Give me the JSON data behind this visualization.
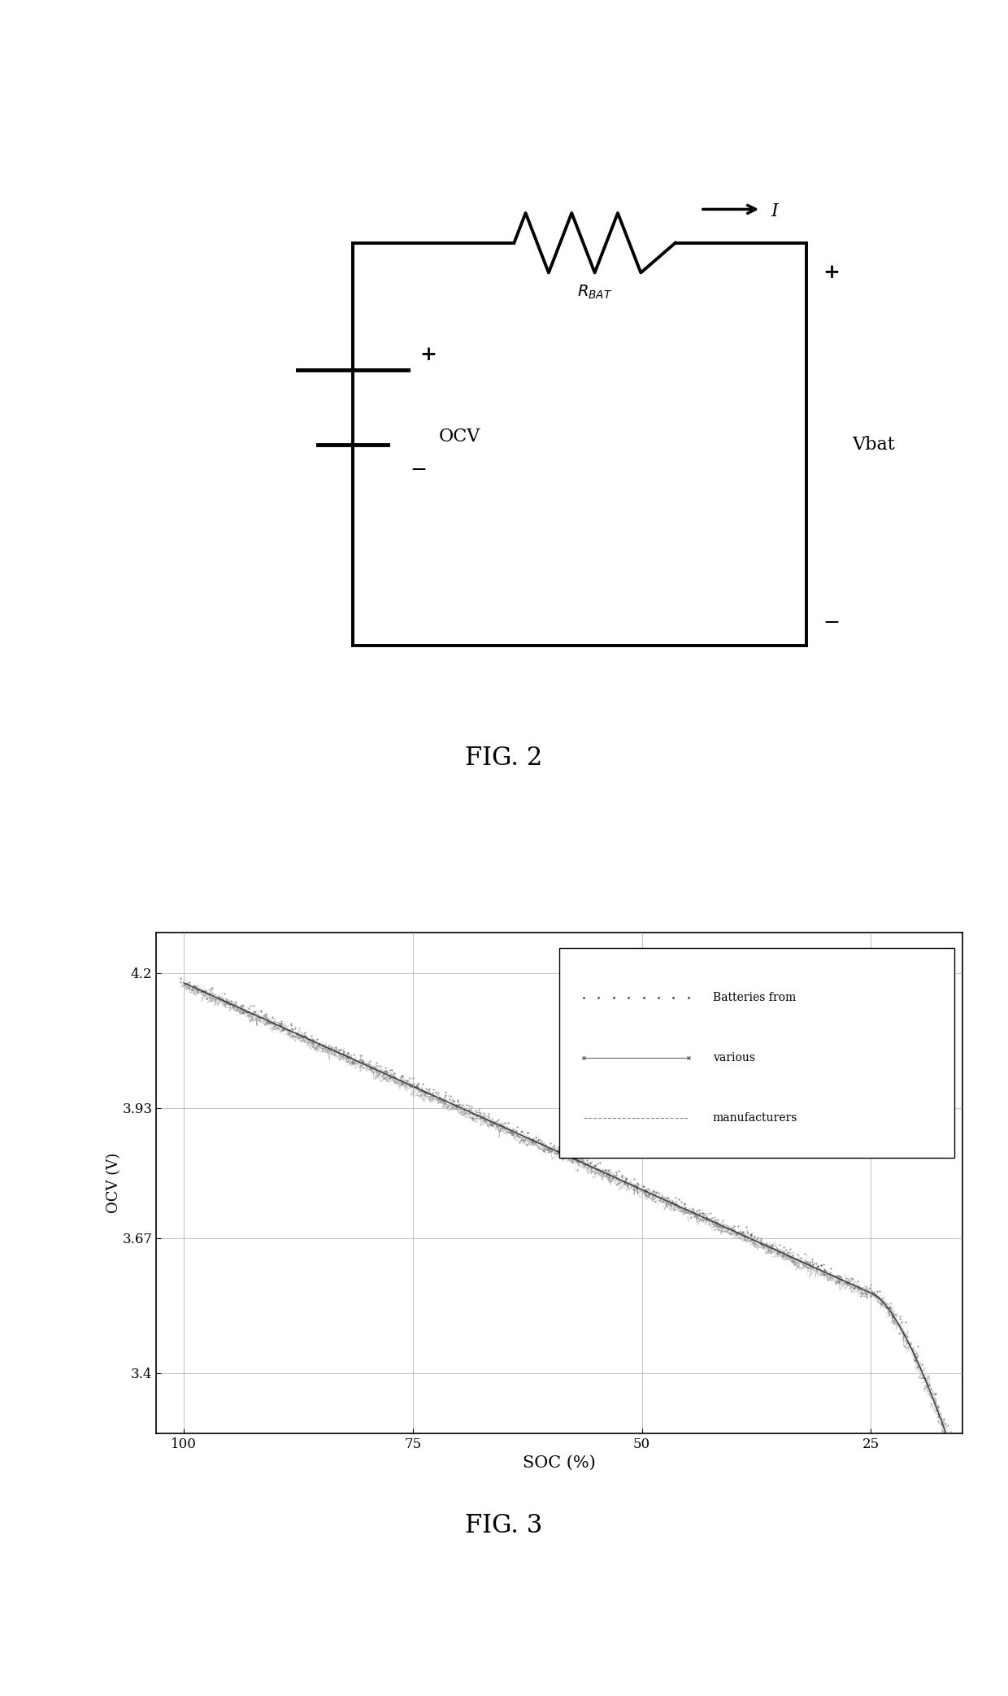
{
  "fig2_label": "FIG. 2",
  "fig3_label": "FIG. 3",
  "circuit": {
    "battery_label": "OCV",
    "resistor_label": "R_{BAT}",
    "current_label": "I",
    "vbat_label": "Vbat"
  },
  "graph": {
    "xlabel": "SOC (%)",
    "ylabel": "OCV (V)",
    "yticks": [
      3.4,
      3.67,
      3.93,
      4.2
    ],
    "xticks": [
      100,
      75,
      50,
      25
    ],
    "xlim": [
      103,
      15
    ],
    "ylim": [
      3.28,
      4.28
    ],
    "legend_text_line1": "Batteries from",
    "legend_text_line2": "various",
    "legend_text_line3": "manufacturers",
    "grid_color": "#999999",
    "curve_color_dark": "#333333",
    "curve_color_mid": "#666666",
    "curve_color_light": "#aaaaaa"
  },
  "background_color": "#ffffff",
  "text_color": "#000000"
}
